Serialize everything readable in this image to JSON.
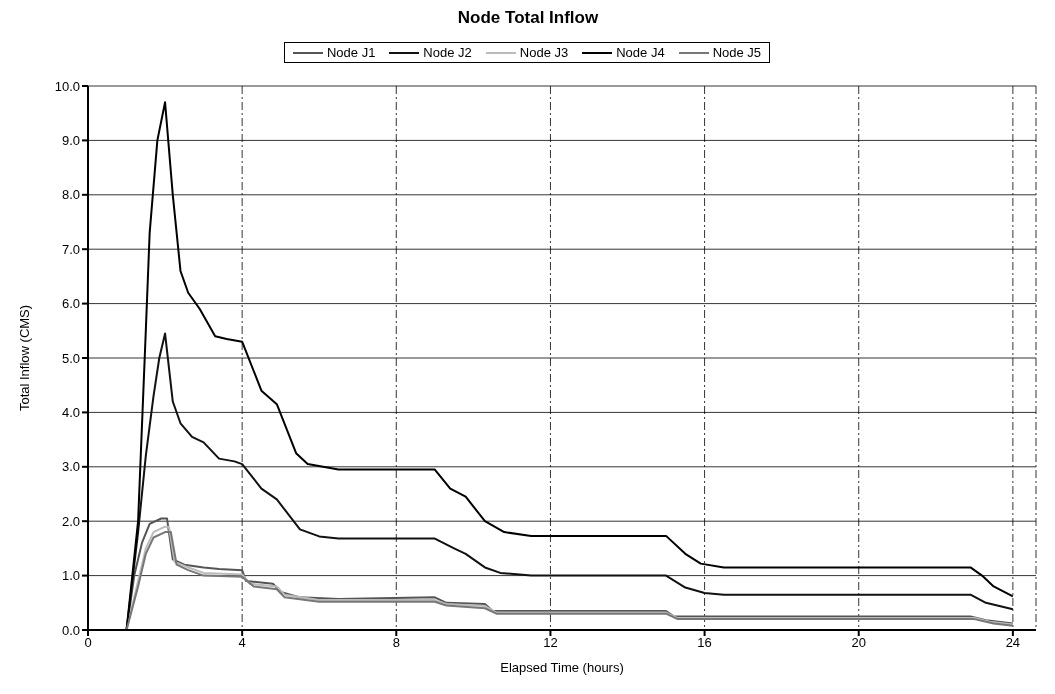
{
  "chart_data": {
    "type": "line",
    "title": "Node Total Inflow",
    "xlabel": "Elapsed Time (hours)",
    "ylabel": "Total Inflow (CMS)",
    "xlim": [
      0,
      24.6
    ],
    "xticks": [
      0,
      4,
      8,
      12,
      16,
      20,
      24
    ],
    "ylim": [
      0,
      10
    ],
    "yticks": [
      {
        "value": 0,
        "label": "0.0"
      },
      {
        "value": 1,
        "label": "1.0"
      },
      {
        "value": 2,
        "label": "2.0"
      },
      {
        "value": 3,
        "label": "3.0"
      },
      {
        "value": 4,
        "label": "4.0"
      },
      {
        "value": 5,
        "label": "5.0"
      },
      {
        "value": 6,
        "label": "6.0"
      },
      {
        "value": 7,
        "label": "7.0"
      },
      {
        "value": 8,
        "label": "8.0"
      },
      {
        "value": 9,
        "label": "9.0"
      },
      {
        "value": 10,
        "label": "10.0"
      }
    ],
    "grid": true,
    "legend": "top",
    "marker": "none",
    "line_style": "solid",
    "series": [
      {
        "name": "Node J1",
        "color": "#555555",
        "x": [
          1.0,
          1.2,
          1.4,
          1.6,
          1.9,
          2.05,
          2.2,
          2.5,
          3.0,
          3.4,
          4.0,
          4.1,
          4.8,
          5.0,
          5.5,
          6.5,
          9.0,
          9.3,
          10.3,
          10.5,
          15.0,
          15.2,
          22.9,
          23.3,
          24
        ],
        "values": [
          0,
          1.0,
          1.6,
          1.95,
          2.05,
          2.05,
          1.3,
          1.2,
          1.15,
          1.12,
          1.1,
          0.9,
          0.85,
          0.7,
          0.6,
          0.57,
          0.6,
          0.5,
          0.48,
          0.35,
          0.35,
          0.25,
          0.25,
          0.18,
          0.12
        ]
      },
      {
        "name": "Node J2",
        "color": "#111111",
        "x": [
          1.0,
          1.3,
          1.5,
          1.7,
          1.85,
          2.0,
          2.2,
          2.4,
          2.7,
          3.0,
          3.4,
          3.8,
          4.0,
          4.5,
          4.9,
          5.5,
          6.0,
          6.5,
          9.0,
          9.5,
          9.8,
          10.3,
          10.7,
          11.5,
          15.0,
          15.5,
          16.0,
          16.5,
          22.9,
          23.3,
          24
        ],
        "values": [
          0,
          1.8,
          3.2,
          4.3,
          5.0,
          5.45,
          4.2,
          3.8,
          3.55,
          3.45,
          3.15,
          3.1,
          3.05,
          2.6,
          2.4,
          1.85,
          1.72,
          1.68,
          1.68,
          1.5,
          1.4,
          1.15,
          1.05,
          1.0,
          1.0,
          0.78,
          0.68,
          0.65,
          0.65,
          0.5,
          0.38
        ]
      },
      {
        "name": "Node J3",
        "color": "#bbbbbb",
        "x": [
          1.0,
          1.3,
          1.5,
          1.7,
          2.0,
          2.1,
          2.25,
          2.6,
          3.0,
          4.0,
          4.2,
          4.9,
          5.1,
          6.0,
          9.0,
          9.3,
          10.3,
          10.6,
          15.0,
          15.3,
          23.0,
          23.4,
          24
        ],
        "values": [
          0,
          0.9,
          1.5,
          1.8,
          1.9,
          1.9,
          1.25,
          1.15,
          1.05,
          1.02,
          0.85,
          0.8,
          0.65,
          0.55,
          0.55,
          0.48,
          0.44,
          0.32,
          0.32,
          0.22,
          0.22,
          0.15,
          0.1
        ]
      },
      {
        "name": "Node J4",
        "color": "#000000",
        "x": [
          1.0,
          1.3,
          1.5,
          1.6,
          1.8,
          2.0,
          2.2,
          2.4,
          2.6,
          2.9,
          3.3,
          3.6,
          4.0,
          4.5,
          4.9,
          5.4,
          5.7,
          6.5,
          9.0,
          9.4,
          9.8,
          10.3,
          10.8,
          11.5,
          15.0,
          15.5,
          15.9,
          16.5,
          22.9,
          23.2,
          23.5,
          24
        ],
        "values": [
          0,
          2.0,
          5.5,
          7.3,
          9.0,
          9.7,
          8.0,
          6.6,
          6.2,
          5.9,
          5.4,
          5.35,
          5.3,
          4.4,
          4.15,
          3.25,
          3.05,
          2.95,
          2.95,
          2.6,
          2.45,
          2.0,
          1.8,
          1.73,
          1.73,
          1.4,
          1.22,
          1.15,
          1.15,
          1.0,
          0.8,
          0.62
        ]
      },
      {
        "name": "Node J5",
        "color": "#777777",
        "x": [
          1.0,
          1.3,
          1.5,
          1.7,
          2.0,
          2.15,
          2.3,
          2.6,
          3.0,
          4.0,
          4.3,
          4.9,
          5.1,
          6.0,
          9.0,
          9.3,
          10.3,
          10.6,
          15.0,
          15.3,
          23.0,
          23.5,
          24
        ],
        "values": [
          0,
          0.8,
          1.4,
          1.7,
          1.8,
          1.8,
          1.2,
          1.1,
          1.0,
          0.98,
          0.8,
          0.75,
          0.6,
          0.52,
          0.52,
          0.45,
          0.4,
          0.3,
          0.3,
          0.2,
          0.2,
          0.12,
          0.08
        ]
      }
    ]
  }
}
